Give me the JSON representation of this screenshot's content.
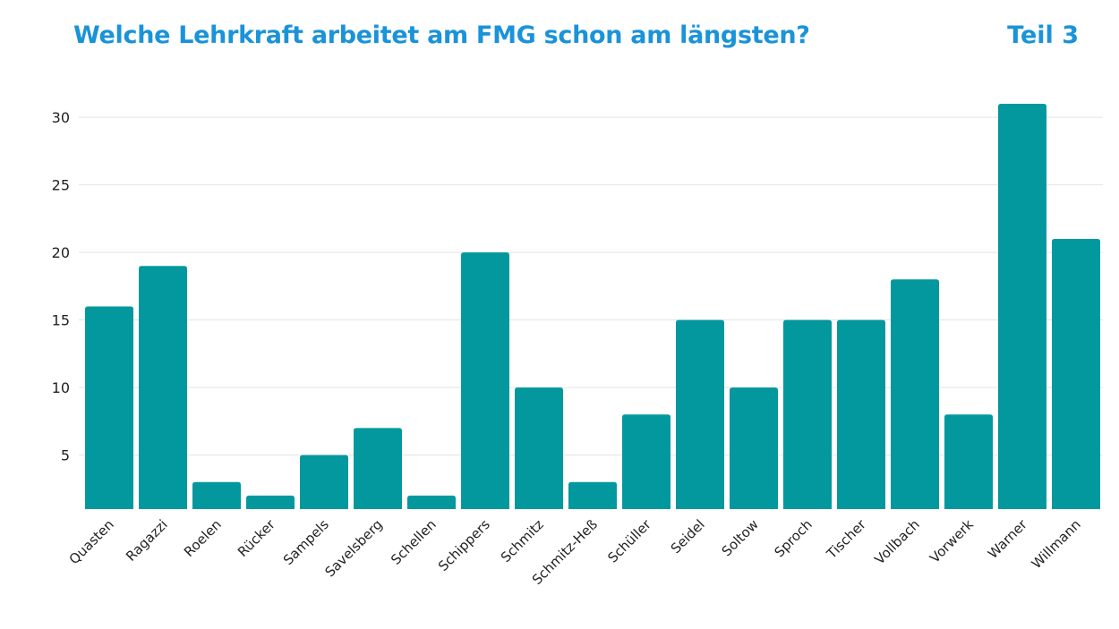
{
  "header": {
    "title": "Welche Lehrkraft arbeitet am FMG schon am längsten?",
    "part": "Teil 3"
  },
  "chart_data": {
    "type": "bar",
    "categories": [
      "Quasten",
      "Ragazzi",
      "Roelen",
      "Rücker",
      "Sampels",
      "Savelsberg",
      "Schellen",
      "Schippers",
      "Schmitz",
      "Schmitz-Heß",
      "Schüller",
      "Seidel",
      "Soltow",
      "Sproch",
      "Tischer",
      "Vollbach",
      "Vorwerk",
      "Warner",
      "Willmann"
    ],
    "values": [
      16,
      19,
      3,
      2,
      5,
      7,
      2,
      20,
      10,
      3,
      8,
      15,
      10,
      15,
      15,
      18,
      8,
      31,
      21
    ],
    "yticks": [
      5,
      10,
      15,
      20,
      25,
      30
    ],
    "ylim": [
      1,
      32
    ],
    "grid": true,
    "colors": {
      "bar": "#03989e",
      "grid": "#e3e3e3",
      "title": "#1a93d8"
    }
  }
}
